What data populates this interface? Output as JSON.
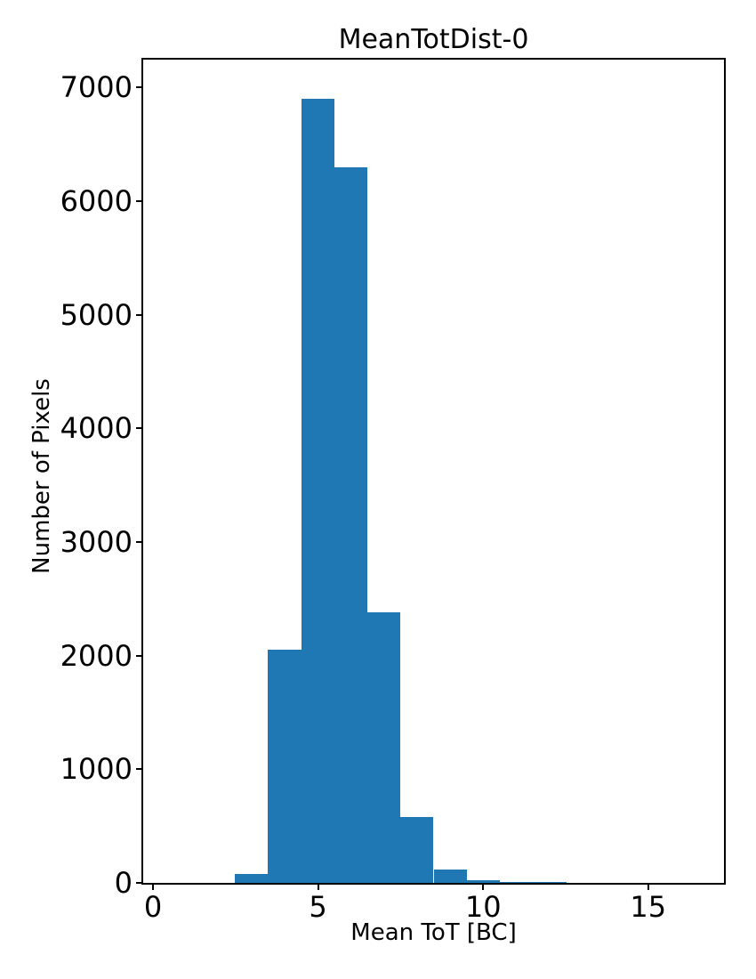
{
  "chart_data": {
    "type": "bar",
    "subtype": "histogram",
    "title": "MeanTotDist-0",
    "xlabel": "Mean ToT [BC]",
    "ylabel": "Number of Pixels",
    "bar_color": "#1f77b4",
    "axis_color": "#000000",
    "background_color": "#ffffff",
    "bin_edges": [
      2.48,
      3.48,
      4.49,
      5.49,
      6.49,
      7.5,
      8.5,
      9.5,
      10.51,
      11.51,
      12.52
    ],
    "counts": [
      78,
      2050,
      6900,
      6300,
      2380,
      580,
      120,
      27,
      10,
      8
    ],
    "xticks": [
      0,
      5,
      10,
      15
    ],
    "yticks": [
      0,
      1000,
      2000,
      3000,
      4000,
      5000,
      6000,
      7000
    ],
    "xlim": [
      -0.3,
      17.3
    ],
    "ylim": [
      0,
      7245
    ],
    "grid": false,
    "legend": null
  }
}
